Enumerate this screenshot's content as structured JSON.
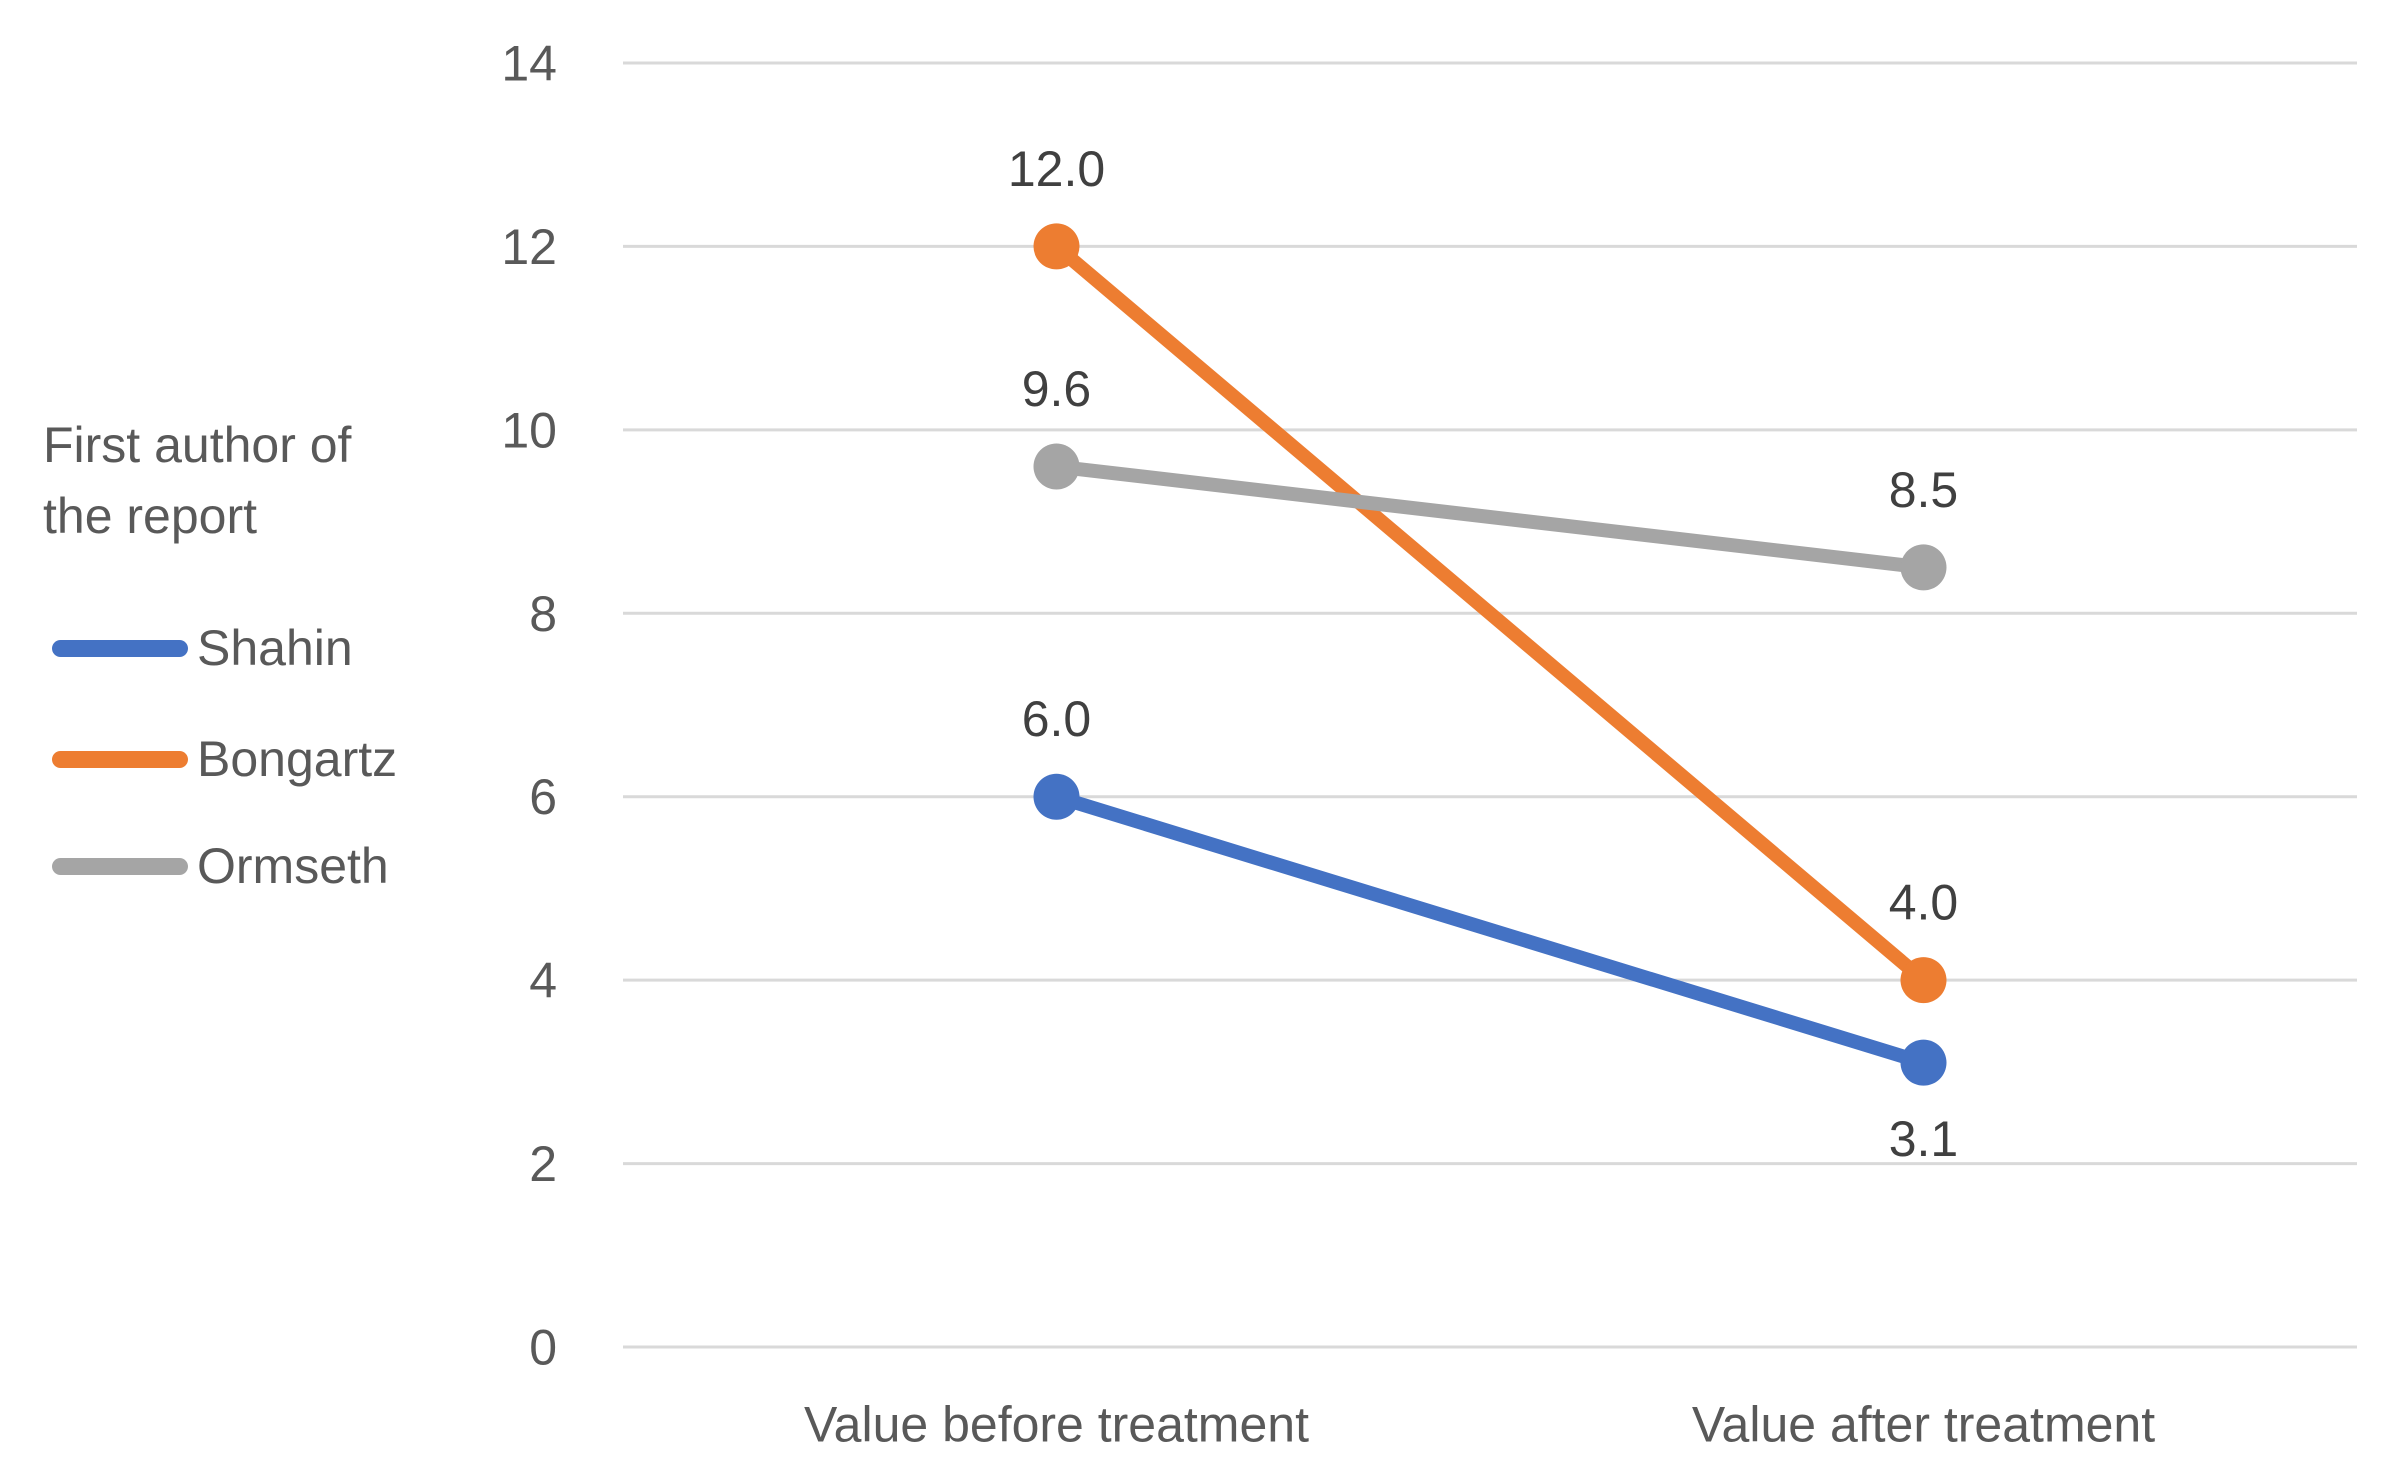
{
  "chart_data": {
    "type": "line",
    "title": "",
    "xlabel": "",
    "ylabel": "",
    "categories": [
      "Value before treatment",
      "Value after treatment"
    ],
    "series": [
      {
        "name": "Shahin",
        "color": "#4472C4",
        "values": [
          6.0,
          3.1
        ],
        "point_labels": [
          "6.0",
          "3.1"
        ],
        "label_positions": [
          "above",
          "below"
        ]
      },
      {
        "name": "Bongartz",
        "color": "#ED7D31",
        "values": [
          12.0,
          4.0
        ],
        "point_labels": [
          "12.0",
          "4.0"
        ],
        "label_positions": [
          "above",
          "above"
        ]
      },
      {
        "name": "Ormseth",
        "color": "#A5A5A5",
        "values": [
          9.6,
          8.5
        ],
        "point_labels": [
          "9.6",
          "8.5"
        ],
        "label_positions": [
          "above",
          "above"
        ]
      }
    ],
    "yticks": [
      "0",
      "2",
      "4",
      "6",
      "8",
      "10",
      "12",
      "14"
    ],
    "ylim": [
      0,
      14
    ],
    "grid": true,
    "legend_position": "left"
  },
  "legend": {
    "title_line1": "First author of",
    "title_line2": "the report"
  },
  "colors": {
    "gridline": "#D9D9D9",
    "axis_text": "#595959",
    "data_label_text": "#404040",
    "background": "#FFFFFF"
  }
}
